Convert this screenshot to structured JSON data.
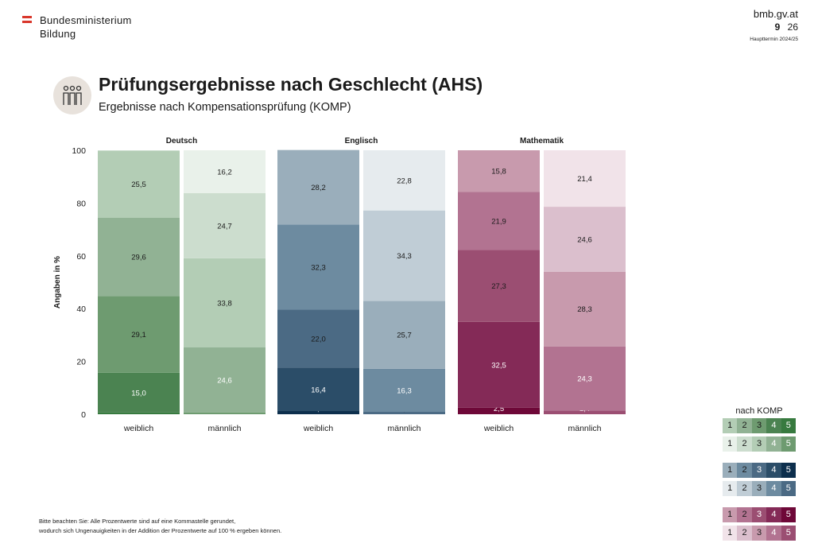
{
  "header": {
    "org_line1": "Bundesministerium",
    "org_line2": "Bildung",
    "site": "bmb.gv.at",
    "page_number": "26",
    "term": "Haupttermin 2024/25"
  },
  "title": "Prüfungsergebnisse nach Geschlecht (AHS)",
  "subtitle": "Ergebnisse nach Kompensationsprüfung (KOMP)",
  "icon": "people-icon",
  "footnote": {
    "line1": "Bitte beachten Sie: Alle Prozentwerte sind auf eine Kommastelle gerundet,",
    "line2": "wodurch sich Ungenauigkeiten in der Addition der Prozentwerte auf 100 % ergeben können."
  },
  "legend": {
    "title": "nach KOMP",
    "grades": [
      "1",
      "2",
      "3",
      "4",
      "5"
    ],
    "rows": [
      {
        "colors": [
          "#b3cdb5",
          "#91b294",
          "#6e9b70",
          "#4b8351",
          "#377a3f"
        ],
        "text": [
          "#1a1a1a",
          "#1a1a1a",
          "#1a1a1a",
          "#ffffff",
          "#ffffff"
        ]
      },
      {
        "colors": [
          "#e9f1ea",
          "#ccddce",
          "#b3cdb5",
          "#91b294",
          "#6e9b70"
        ],
        "text": [
          "#1a1a1a",
          "#1a1a1a",
          "#1a1a1a",
          "#ffffff",
          "#ffffff"
        ]
      },
      {
        "colors": [
          "#9aaebb",
          "#6d8ba0",
          "#4b6a84",
          "#2b4d68",
          "#0d2f4d"
        ],
        "text": [
          "#1a1a1a",
          "#1a1a1a",
          "#ffffff",
          "#ffffff",
          "#ffffff"
        ]
      },
      {
        "colors": [
          "#e6ebee",
          "#c0cdd6",
          "#9aaebb",
          "#6d8ba0",
          "#4b6a84"
        ],
        "text": [
          "#1a1a1a",
          "#1a1a1a",
          "#1a1a1a",
          "#ffffff",
          "#ffffff"
        ]
      },
      {
        "colors": [
          "#c89aad",
          "#b27391",
          "#9b4e72",
          "#842a57",
          "#6e0838"
        ],
        "text": [
          "#1a1a1a",
          "#1a1a1a",
          "#ffffff",
          "#ffffff",
          "#ffffff"
        ]
      },
      {
        "colors": [
          "#f1e3e9",
          "#dbbfcd",
          "#c89aad",
          "#b27391",
          "#9b4e72"
        ],
        "text": [
          "#1a1a1a",
          "#1a1a1a",
          "#1a1a1a",
          "#ffffff",
          "#ffffff"
        ]
      }
    ]
  },
  "chart_data": {
    "type": "bar",
    "stacked": true,
    "ylabel": "Angaben in %",
    "ylim": [
      0,
      100
    ],
    "yticks": [
      0,
      20,
      40,
      60,
      80,
      100
    ],
    "grade_order": [
      "5",
      "4",
      "3",
      "2",
      "1"
    ],
    "groups": [
      {
        "subject": "Deutsch",
        "bars": [
          {
            "category": "weiblich",
            "values": [
              0.7,
              15.0,
              29.1,
              29.6,
              25.5
            ],
            "colors": [
              "#377a3f",
              "#4b8351",
              "#6e9b70",
              "#91b294",
              "#b3cdb5"
            ],
            "text_colors": [
              "#ffffff",
              "#ffffff",
              "#1a1a1a",
              "#1a1a1a",
              "#1a1a1a"
            ],
            "labels": [
              "0,7",
              "15,0",
              "29,1",
              "29,6",
              "25,5"
            ]
          },
          {
            "category": "männlich",
            "values": [
              0.7,
              24.6,
              33.8,
              24.7,
              16.2
            ],
            "colors": [
              "#6e9b70",
              "#91b294",
              "#b3cdb5",
              "#ccddce",
              "#e9f1ea"
            ],
            "text_colors": [
              "#ffffff",
              "#ffffff",
              "#1a1a1a",
              "#1a1a1a",
              "#1a1a1a"
            ],
            "labels": [
              "0,7",
              "24,6",
              "33,8",
              "24,7",
              "16,2"
            ]
          }
        ]
      },
      {
        "subject": "Englisch",
        "bars": [
          {
            "category": "weiblich",
            "values": [
              1.2,
              16.4,
              22.0,
              32.3,
              28.2
            ],
            "colors": [
              "#0d2f4d",
              "#2b4d68",
              "#4b6a84",
              "#6d8ba0",
              "#9aaebb"
            ],
            "text_colors": [
              "#ffffff",
              "#ffffff",
              "#1a1a1a",
              "#1a1a1a",
              "#1a1a1a"
            ],
            "labels": [
              "1,2",
              "16,4",
              "22,0",
              "32,3",
              "28,2"
            ]
          },
          {
            "category": "männlich",
            "values": [
              0.9,
              16.3,
              25.7,
              34.3,
              22.8
            ],
            "colors": [
              "#4b6a84",
              "#6d8ba0",
              "#9aaebb",
              "#c0cdd6",
              "#e6ebee"
            ],
            "text_colors": [
              "#1a1a1a",
              "#ffffff",
              "#1a1a1a",
              "#1a1a1a",
              "#1a1a1a"
            ],
            "labels": [
              "0,9",
              "16,3",
              "25,7",
              "34,3",
              "22,8"
            ]
          }
        ]
      },
      {
        "subject": "Mathematik",
        "bars": [
          {
            "category": "weiblich",
            "values": [
              2.5,
              32.5,
              27.3,
              21.9,
              15.8
            ],
            "colors": [
              "#6e0838",
              "#842a57",
              "#9b4e72",
              "#b27391",
              "#c89aad"
            ],
            "text_colors": [
              "#ffffff",
              "#ffffff",
              "#1a1a1a",
              "#1a1a1a",
              "#1a1a1a"
            ],
            "labels": [
              "2,5",
              "32,5",
              "27,3",
              "21,9",
              "15,8"
            ]
          },
          {
            "category": "männlich",
            "values": [
              1.4,
              24.3,
              28.3,
              24.6,
              21.4
            ],
            "colors": [
              "#9b4e72",
              "#b27391",
              "#c89aad",
              "#dbbfcd",
              "#f1e3e9"
            ],
            "text_colors": [
              "#ffffff",
              "#ffffff",
              "#1a1a1a",
              "#1a1a1a",
              "#1a1a1a"
            ],
            "labels": [
              "1,4",
              "24,3",
              "28,3",
              "24,6",
              "21,4"
            ]
          }
        ]
      }
    ]
  }
}
